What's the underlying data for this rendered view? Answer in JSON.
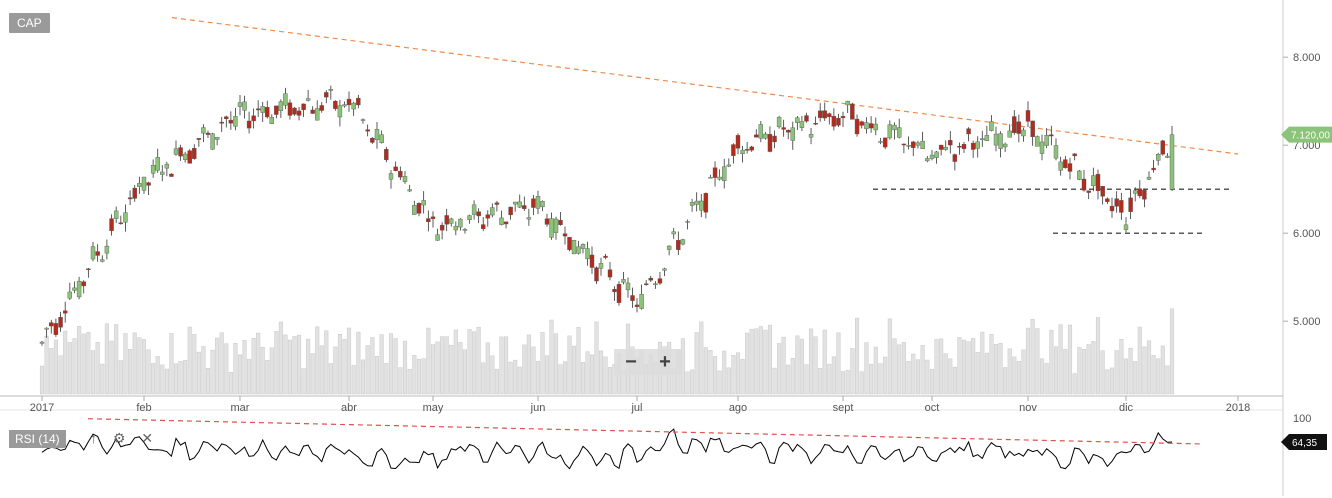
{
  "symbol": "CAP",
  "indicator": "RSI (14)",
  "tools": {
    "arrow_icon": "arrow-up-icon",
    "settings_icon": "gear-icon",
    "close_icon": "close-icon"
  },
  "zoom": {
    "minus": "−",
    "plus": "+"
  },
  "chart_data": {
    "type": "candlestick",
    "x_labels": [
      "2017",
      "feb",
      "mar",
      "abr",
      "may",
      "jun",
      "jul",
      "ago",
      "sept",
      "oct",
      "nov",
      "dic",
      "2018"
    ],
    "price_axis": {
      "ticks": [
        "8.000",
        "7.000",
        "6.000",
        "5.000"
      ],
      "range": [
        4150,
        8650
      ]
    },
    "last_price_label": "7.120,00",
    "rsi_axis": {
      "ticks": [
        "100"
      ],
      "range": [
        0,
        100
      ]
    },
    "rsi_last_label": "64,35",
    "monthly_closes": [
      {
        "month": "2017",
        "close": 4750
      },
      {
        "month": "feb",
        "close": 6600
      },
      {
        "month": "mar",
        "close": 7350
      },
      {
        "month": "abr",
        "close": 7500
      },
      {
        "month": "may",
        "close": 6100
      },
      {
        "month": "jun",
        "close": 6300
      },
      {
        "month": "jul",
        "close": 5200
      },
      {
        "month": "ago",
        "close": 7000
      },
      {
        "month": "sept",
        "close": 7350
      },
      {
        "month": "oct",
        "close": 6900
      },
      {
        "month": "nov",
        "close": 7200
      },
      {
        "month": "dic",
        "close": 6200
      },
      {
        "month": "latest",
        "close": 7120
      }
    ],
    "resistance_trendline": {
      "from": {
        "month": "feb",
        "value": 8450
      },
      "to": {
        "month": "2018",
        "value": 6900
      }
    },
    "support_lines": [
      6500,
      6000
    ],
    "rsi_trendline": {
      "from": 92,
      "to": 62
    },
    "colors": {
      "up": "#8cc37a",
      "down": "#b22b1c",
      "trend": "#f08a4b",
      "volume": "#e2e2e2",
      "rsi_line": "#000000",
      "rsi_trend": "#e0504f"
    }
  }
}
